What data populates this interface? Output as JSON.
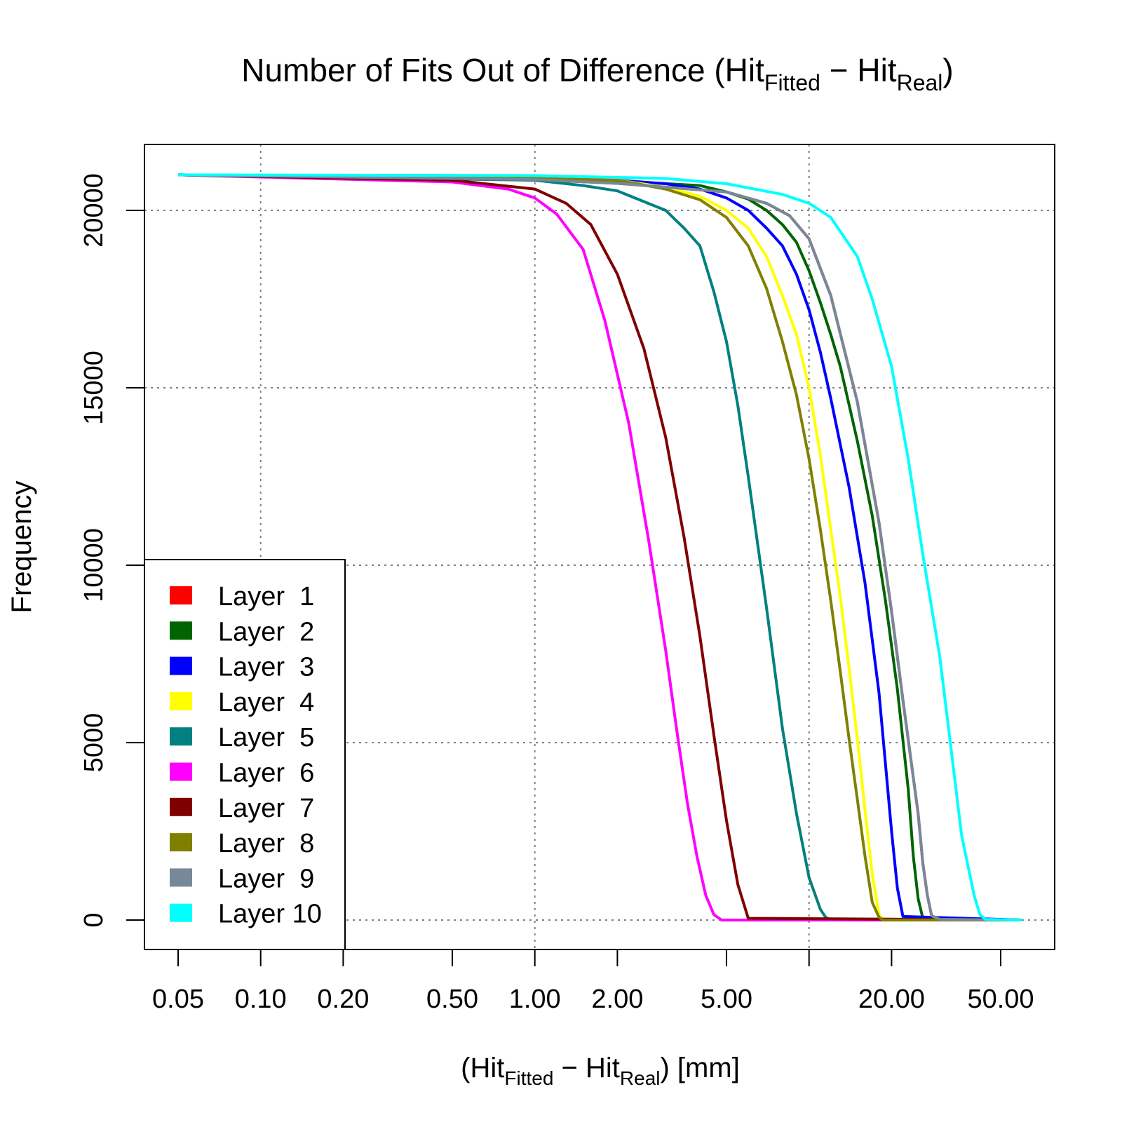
{
  "chart_data": {
    "type": "line",
    "title": {
      "prefix": "Number of Fits Out of Difference (Hit",
      "sub1": "Fitted",
      "mid": " − Hit",
      "sub2": "Real",
      "suffix": ")"
    },
    "xlabel": {
      "prefix": "(Hit",
      "sub1": "Fitted",
      "mid": " − Hit",
      "sub2": "Real",
      "suffix": ")  [mm]"
    },
    "ylabel": "Frequency",
    "x_scale": "log",
    "xlim": [
      0.05,
      60
    ],
    "ylim": [
      0,
      21000
    ],
    "x_ticks": [
      0.05,
      0.1,
      0.2,
      0.5,
      1,
      2,
      5,
      10,
      20,
      50
    ],
    "x_tick_labels": [
      "0.05",
      "0.10",
      "0.20",
      "0.50",
      "1.00",
      "2.00",
      "5.00",
      "",
      "20.00",
      "50.00"
    ],
    "y_ticks": [
      0,
      5000,
      10000,
      15000,
      20000
    ],
    "y_tick_labels": [
      "0",
      "5000",
      "10000",
      "15000",
      "20000"
    ],
    "grid_x": [
      0.1,
      1,
      10
    ],
    "grid_y": [
      0,
      5000,
      10000,
      15000,
      20000
    ],
    "grid": true,
    "legend_position": "bottom-left",
    "series": [
      {
        "name": "Layer  1",
        "color": "#ff0000",
        "x": [
          0.05,
          1,
          2,
          5,
          7,
          8.5,
          10,
          12,
          15,
          18,
          20,
          22,
          25,
          26,
          27,
          28,
          30,
          60
        ],
        "y": [
          21000,
          20870,
          20760,
          20520,
          20200,
          19850,
          19200,
          17600,
          14600,
          11200,
          8700,
          6200,
          3000,
          1600,
          700,
          120,
          20,
          0
        ]
      },
      {
        "name": "Layer  2",
        "color": "#006400",
        "x": [
          0.05,
          1,
          2,
          4,
          5,
          6,
          7,
          8,
          9,
          10,
          11,
          12,
          13,
          15,
          17,
          19,
          21,
          23,
          24,
          25,
          26,
          60
        ],
        "y": [
          21000,
          20900,
          20830,
          20700,
          20520,
          20320,
          20000,
          19600,
          19100,
          18300,
          17400,
          16500,
          15600,
          13500,
          11400,
          9000,
          6500,
          3700,
          1800,
          600,
          50,
          0
        ]
      },
      {
        "name": "Layer  3",
        "color": "#0000ff",
        "x": [
          0.05,
          1,
          2,
          3,
          4,
          5,
          6,
          7,
          8,
          9,
          10,
          11,
          12,
          14,
          16,
          18,
          19,
          20,
          21,
          22,
          60
        ],
        "y": [
          21000,
          20900,
          20850,
          20750,
          20600,
          20350,
          20000,
          19500,
          19000,
          18200,
          17200,
          16000,
          14700,
          12200,
          9500,
          6400,
          4400,
          2500,
          900,
          100,
          0
        ]
      },
      {
        "name": "Layer  4",
        "color": "#ffff00",
        "x": [
          0.05,
          1,
          2,
          3,
          4,
          5,
          6,
          7,
          8,
          9,
          10,
          11,
          12,
          13,
          14,
          15,
          16,
          17,
          18,
          18.6,
          60
        ],
        "y": [
          21000,
          20900,
          20850,
          20650,
          20400,
          20000,
          19500,
          18700,
          17600,
          16500,
          15000,
          13100,
          11000,
          9100,
          7100,
          5100,
          3100,
          1300,
          150,
          20,
          0
        ]
      },
      {
        "name": "Layer  5",
        "color": "#008080",
        "x": [
          0.05,
          1,
          1.5,
          2,
          3,
          3.5,
          4,
          4.5,
          5,
          5.5,
          6,
          7,
          8,
          9,
          10,
          11,
          11.5,
          12,
          60
        ],
        "y": [
          21000,
          20850,
          20700,
          20550,
          20000,
          19500,
          19000,
          17700,
          16300,
          14500,
          12500,
          8800,
          5400,
          3000,
          1200,
          300,
          80,
          0,
          0
        ]
      },
      {
        "name": "Layer  6",
        "color": "#ff00ff",
        "x": [
          0.05,
          0.5,
          0.8,
          1,
          1.2,
          1.5,
          1.8,
          2.2,
          2.6,
          3,
          3.3,
          3.6,
          3.9,
          4.2,
          4.5,
          4.8,
          60
        ],
        "y": [
          21000,
          20800,
          20600,
          20350,
          19900,
          18900,
          16900,
          14000,
          10700,
          7600,
          5300,
          3300,
          1800,
          700,
          150,
          0,
          0
        ]
      },
      {
        "name": "Layer  7",
        "color": "#800000",
        "x": [
          0.05,
          0.5,
          1,
          1.3,
          1.6,
          2,
          2.5,
          3,
          3.5,
          4,
          4.5,
          5,
          5.5,
          6,
          60
        ],
        "y": [
          21000,
          20850,
          20600,
          20200,
          19600,
          18200,
          16100,
          13600,
          10800,
          8000,
          5200,
          2800,
          1000,
          50,
          0
        ]
      },
      {
        "name": "Layer  8",
        "color": "#808000",
        "x": [
          0.05,
          1,
          2,
          3,
          4,
          5,
          6,
          7,
          8,
          9,
          10,
          11,
          12,
          13,
          14,
          15,
          16,
          17,
          18,
          18.6,
          60
        ],
        "y": [
          21000,
          20900,
          20850,
          20600,
          20300,
          19800,
          19000,
          17800,
          16300,
          14800,
          13000,
          11000,
          9000,
          7000,
          5100,
          3400,
          1800,
          500,
          80,
          0,
          0
        ]
      },
      {
        "name": "Layer  9",
        "color": "#778899",
        "x": [
          0.05,
          1,
          2,
          5,
          7,
          8.5,
          10,
          12,
          15,
          18,
          20,
          22,
          25,
          26,
          27,
          28,
          30,
          60
        ],
        "y": [
          21000,
          20870,
          20760,
          20520,
          20200,
          19850,
          19200,
          17600,
          14600,
          11200,
          8700,
          6200,
          3000,
          1600,
          700,
          120,
          20,
          0
        ]
      },
      {
        "name": "Layer 10",
        "color": "#00ffff",
        "x": [
          0.05,
          1,
          3,
          5,
          8,
          10,
          12,
          15,
          17,
          20,
          23,
          26,
          30,
          33,
          36,
          40,
          42,
          44,
          60
        ],
        "y": [
          21000,
          20980,
          20900,
          20750,
          20450,
          20200,
          19800,
          18700,
          17500,
          15600,
          13000,
          10300,
          7400,
          4800,
          2400,
          700,
          150,
          20,
          0
        ]
      }
    ]
  }
}
